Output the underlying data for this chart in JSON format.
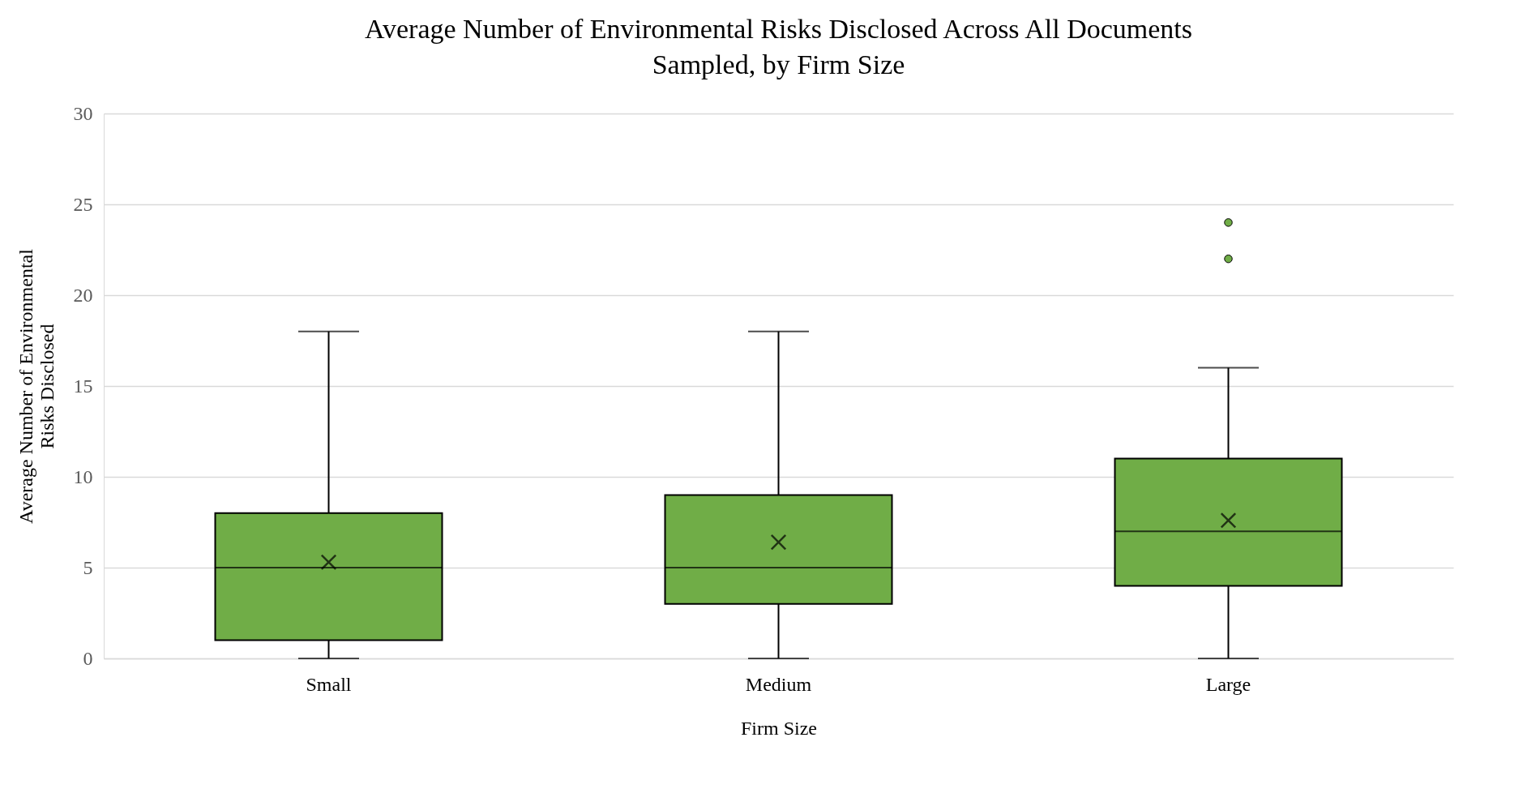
{
  "chart_data": {
    "type": "box",
    "title": "Average Number of Environmental Risks Disclosed Across All Documents Sampled, by Firm Size",
    "xlabel": "Firm Size",
    "ylabel": "Average Number of Environmental Risks Disclosed",
    "categories": [
      "Small",
      "Medium",
      "Large"
    ],
    "series": [
      {
        "color": "#70ad47",
        "boxes": [
          {
            "low": 0,
            "q1": 1,
            "median": 5,
            "q3": 8,
            "high": 18,
            "mean": 5.3
          },
          {
            "low": 0,
            "q1": 3,
            "median": 5,
            "q3": 9,
            "high": 18,
            "mean": 6.4
          },
          {
            "low": 0,
            "q1": 4,
            "median": 7,
            "q3": 11,
            "high": 16,
            "mean": 7.6,
            "outliers": [
              22,
              24
            ]
          }
        ]
      }
    ],
    "ylim": [
      0,
      30
    ],
    "yticks": [
      0,
      5,
      10,
      15,
      20,
      25,
      30
    ],
    "grid": "y"
  }
}
